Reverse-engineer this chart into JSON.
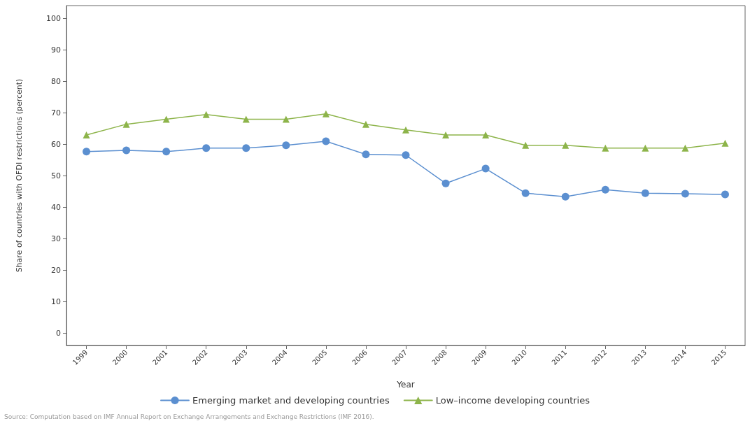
{
  "chart_data": {
    "type": "line",
    "xlabel": "Year",
    "ylabel": "Share of countries with OFDI restrictions (percent)",
    "categories": [
      "1999",
      "2000",
      "2001",
      "2002",
      "2003",
      "2004",
      "2005",
      "2006",
      "2007",
      "2008",
      "2009",
      "2010",
      "2011",
      "2012",
      "2013",
      "2014",
      "2015"
    ],
    "series": [
      {
        "name": "Emerging market and developing countries",
        "color": "#5b8fd0",
        "marker": "circle",
        "values": [
          57.6,
          58.0,
          57.6,
          58.7,
          58.7,
          59.6,
          60.9,
          56.7,
          56.5,
          47.5,
          52.2,
          44.4,
          43.3,
          45.5,
          44.4,
          44.2,
          44.0
        ]
      },
      {
        "name": "Low–income developing countries",
        "color": "#8db44a",
        "marker": "triangle",
        "values": [
          62.9,
          66.3,
          67.9,
          69.4,
          67.9,
          67.9,
          69.6,
          66.3,
          64.5,
          62.9,
          62.9,
          59.6,
          59.6,
          58.7,
          58.7,
          58.7,
          60.3
        ]
      }
    ],
    "ylim": [
      -4,
      104
    ],
    "yticks": [
      0,
      10,
      20,
      30,
      40,
      50,
      60,
      70,
      80,
      90,
      100
    ],
    "grid": false,
    "legend": "bottom",
    "line_style": "solid",
    "annotations": [
      "Source: Computation based on IMF Annual Report on Exchange Arrangements and Exchange Restrictions (IMF 2016)."
    ]
  }
}
